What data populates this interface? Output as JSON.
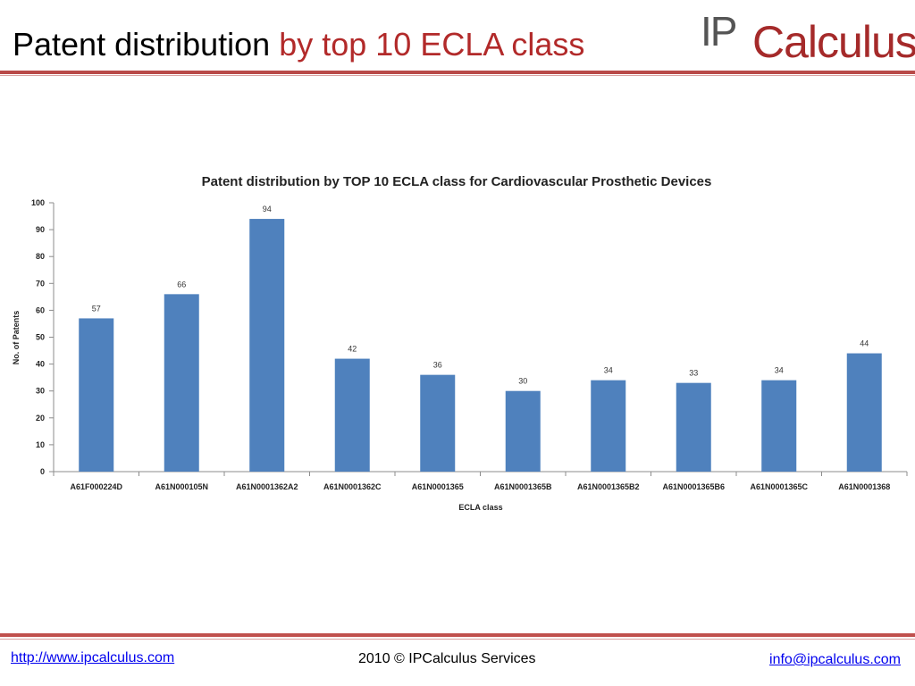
{
  "slide": {
    "title_main": "Patent distribution",
    "title_accent": "by top 10 ECLA class",
    "logo_ip": "IP",
    "logo_calc": "Calculus"
  },
  "footer": {
    "website": "http://www.ipcalculus.com",
    "copyright": "2010 © IPCalculus Services",
    "email": "info@ipcalculus.com"
  },
  "colors": {
    "bar": "#4f81bd",
    "accent": "#b22a2a"
  },
  "chart_data": {
    "type": "bar",
    "title": "Patent distribution  by TOP 10 ECLA class for Cardiovascular Prosthetic Devices",
    "xlabel": "ECLA class",
    "ylabel": "No. of Patents",
    "categories": [
      "A61F000224D",
      "A61N000105N",
      "A61N0001362A2",
      "A61N0001362C",
      "A61N0001365",
      "A61N0001365B",
      "A61N0001365B2",
      "A61N0001365B6",
      "A61N0001365C",
      "A61N0001368"
    ],
    "values": [
      57,
      66,
      94,
      42,
      36,
      30,
      34,
      33,
      34,
      44
    ],
    "ylim": [
      0,
      100
    ],
    "yticks": [
      0,
      10,
      20,
      30,
      40,
      50,
      60,
      70,
      80,
      90,
      100
    ],
    "grid": false,
    "legend": "none"
  }
}
